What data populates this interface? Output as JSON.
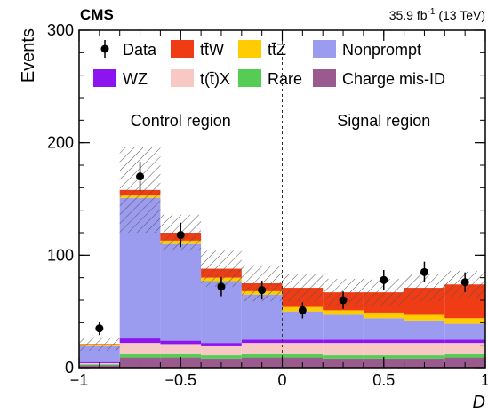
{
  "chart_data": {
    "type": "bar",
    "experiment_label": "CMS",
    "lumi_value": "35.9 fb",
    "lumi_sup": "-1",
    "lumi_energy": " (13 TeV)",
    "xlabel": "D",
    "ylabel": "Events",
    "xlim": [
      -1,
      1
    ],
    "ylim": [
      0,
      300
    ],
    "xticks": [
      -1,
      -0.5,
      0,
      0.5,
      1
    ],
    "xtick_labels": [
      "−1",
      "−0.5",
      "0",
      "0.5",
      "1"
    ],
    "yticks": [
      0,
      100,
      200,
      300
    ],
    "ytick_labels": [
      "0",
      "100",
      "200",
      "300"
    ],
    "regions": [
      {
        "label": "Control region",
        "x_center": -0.5
      },
      {
        "label": "Signal region",
        "x_center": 0.5
      }
    ],
    "divider_x": 0,
    "bin_edges": [
      -1.0,
      -0.8,
      -0.6,
      -0.4,
      -0.2,
      0.0,
      0.2,
      0.4,
      0.6,
      0.8,
      1.0
    ],
    "stack": [
      {
        "name": "Charge mis-ID",
        "color": "#9a5a8e",
        "values": [
          2,
          9,
          9,
          8,
          9,
          9,
          8,
          8,
          8,
          9
        ]
      },
      {
        "name": "Rare",
        "color": "#55cc55",
        "values": [
          1,
          3,
          3,
          3,
          3,
          3,
          3,
          3,
          3,
          3
        ]
      },
      {
        "name": "t(t̄)X",
        "color": "#f8c9c4",
        "values": [
          1,
          10,
          9,
          8,
          10,
          10,
          11,
          11,
          11,
          10
        ]
      },
      {
        "name": "WZ",
        "color": "#8c14f0",
        "values": [
          1,
          4,
          3,
          3,
          3,
          3,
          3,
          3,
          3,
          3
        ]
      },
      {
        "name": "Nonprompt",
        "color": "#9b9bf0",
        "values": [
          14,
          125,
          86,
          55,
          40,
          25,
          22,
          19,
          17,
          14
        ]
      },
      {
        "name": "tt̄Z",
        "color": "#ffcc00",
        "values": [
          1,
          2,
          3,
          3,
          3,
          4,
          4,
          5,
          5,
          5
        ]
      },
      {
        "name": "tt̄W",
        "color": "#f03c14",
        "values": [
          1,
          5,
          7,
          8,
          7,
          17,
          16,
          18,
          24,
          30
        ]
      }
    ],
    "uncertainty": [
      6,
      38,
      16,
      16,
      16,
      12,
      12,
      12,
      12,
      12
    ],
    "data": {
      "name": "Data",
      "x": [
        -0.9,
        -0.7,
        -0.5,
        -0.3,
        -0.1,
        0.1,
        0.3,
        0.5,
        0.7,
        0.9
      ],
      "y": [
        35,
        170,
        118,
        72,
        69,
        51,
        60,
        78,
        85,
        76
      ]
    },
    "legend": [
      {
        "key": "data",
        "label": "Data",
        "marker": "point"
      },
      {
        "key": "ttw",
        "label": "tt̄W",
        "color": "#f03c14"
      },
      {
        "key": "ttz",
        "label": "tt̄Z",
        "color": "#ffcc00"
      },
      {
        "key": "nonprompt",
        "label": "Nonprompt",
        "color": "#9b9bf0"
      },
      {
        "key": "wz",
        "label": "WZ",
        "color": "#8c14f0"
      },
      {
        "key": "ttx",
        "label": "t(t̄)X",
        "color": "#f8c9c4"
      },
      {
        "key": "rare",
        "label": "Rare",
        "color": "#55cc55"
      },
      {
        "key": "chargemisid",
        "label": "Charge mis-ID",
        "color": "#9a5a8e"
      }
    ],
    "legend_placement": "top",
    "grid": false
  }
}
